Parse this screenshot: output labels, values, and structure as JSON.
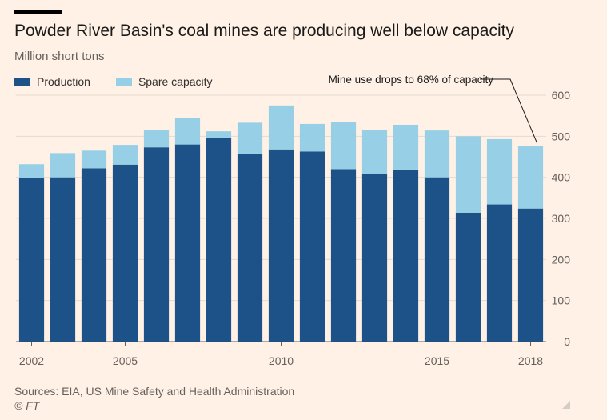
{
  "title": "Powder River Basin's coal mines are producing well below capacity",
  "subtitle": "Million short tons",
  "legend": [
    {
      "label": "Production",
      "color": "#1d5289"
    },
    {
      "label": "Spare capacity",
      "color": "#96cfe6"
    }
  ],
  "source": "Sources: EIA, US Mine Safety and Health Administration",
  "credit": "© FT",
  "chart_data": {
    "type": "bar",
    "stacked": true,
    "categories": [
      "2002",
      "2003",
      "2004",
      "2005",
      "2006",
      "2007",
      "2008",
      "2009",
      "2010",
      "2011",
      "2012",
      "2013",
      "2014",
      "2015",
      "2016",
      "2017",
      "2018"
    ],
    "x_tick_labels": [
      "2002",
      "2005",
      "2010",
      "2015",
      "2018"
    ],
    "series": [
      {
        "name": "Production",
        "color": "#1d5289",
        "values": [
          398,
          400,
          422,
          431,
          473,
          480,
          496,
          457,
          468,
          463,
          420,
          408,
          419,
          400,
          314,
          334,
          324
        ]
      },
      {
        "name": "Spare capacity",
        "color": "#96cfe6",
        "values": [
          34,
          59,
          43,
          48,
          43,
          65,
          16,
          76,
          107,
          67,
          115,
          108,
          109,
          114,
          186,
          159,
          152
        ]
      }
    ],
    "ylim": [
      0,
      600
    ],
    "yticks": [
      0,
      100,
      200,
      300,
      400,
      500,
      600
    ],
    "y_axis_side": "right",
    "grid": true,
    "annotation": {
      "text": "Mine use drops to 68% of capacity",
      "target": "2018"
    }
  }
}
